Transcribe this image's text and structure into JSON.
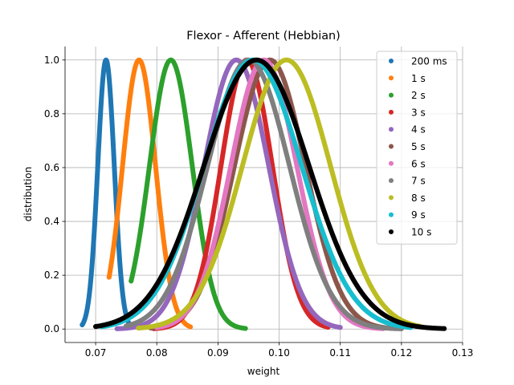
{
  "chart_data": {
    "type": "scatter",
    "title": "Flexor - Afferent (Hebbian)",
    "xlabel": "weight",
    "ylabel": "distribution",
    "xlim": [
      0.065,
      0.13
    ],
    "ylim": [
      -0.05,
      1.05
    ],
    "xticks": [
      0.07,
      0.08,
      0.09,
      0.1,
      0.11,
      0.12,
      0.13
    ],
    "xtick_labels": [
      "0.07",
      "0.08",
      "0.09",
      "0.10",
      "0.11",
      "0.12",
      "0.13"
    ],
    "yticks": [
      0.0,
      0.2,
      0.4,
      0.6,
      0.8,
      1.0
    ],
    "ytick_labels": [
      "0.0",
      "0.2",
      "0.4",
      "0.6",
      "0.8",
      "1.0"
    ],
    "grid": true,
    "legend_position": "top-right",
    "series": [
      {
        "name": "200 ms",
        "color": "#1f77b4",
        "peak": 0.0717,
        "sigma": 0.00135,
        "xmin": 0.0678,
        "xmax": 0.0755
      },
      {
        "name": "1 s",
        "color": "#ff7f0e",
        "peak": 0.0771,
        "sigma": 0.0027,
        "xmin": 0.0722,
        "xmax": 0.0855
      },
      {
        "name": "2 s",
        "color": "#2ca02c",
        "peak": 0.0823,
        "sigma": 0.0035,
        "xmin": 0.0758,
        "xmax": 0.0945
      },
      {
        "name": "3 s",
        "color": "#d62728",
        "peak": 0.0947,
        "sigma": 0.0042,
        "xmin": 0.0795,
        "xmax": 0.108
      },
      {
        "name": "4 s",
        "color": "#9467bd",
        "peak": 0.093,
        "sigma": 0.0053,
        "xmin": 0.0735,
        "xmax": 0.11
      },
      {
        "name": "5 s",
        "color": "#8c564b",
        "peak": 0.0985,
        "sigma": 0.0058,
        "xmin": 0.079,
        "xmax": 0.119
      },
      {
        "name": "6 s",
        "color": "#e377c2",
        "peak": 0.0975,
        "sigma": 0.0054,
        "xmin": 0.08,
        "xmax": 0.117
      },
      {
        "name": "7 s",
        "color": "#7f7f7f",
        "peak": 0.095,
        "sigma": 0.0067,
        "xmin": 0.075,
        "xmax": 0.12
      },
      {
        "name": "8 s",
        "color": "#bcbd22",
        "peak": 0.1012,
        "sigma": 0.0072,
        "xmin": 0.077,
        "xmax": 0.123
      },
      {
        "name": "9 s",
        "color": "#17becf",
        "peak": 0.0957,
        "sigma": 0.008,
        "xmin": 0.071,
        "xmax": 0.1215
      },
      {
        "name": "10 s",
        "color": "#000000",
        "peak": 0.0963,
        "sigma": 0.0086,
        "xmin": 0.07,
        "xmax": 0.127
      }
    ]
  }
}
